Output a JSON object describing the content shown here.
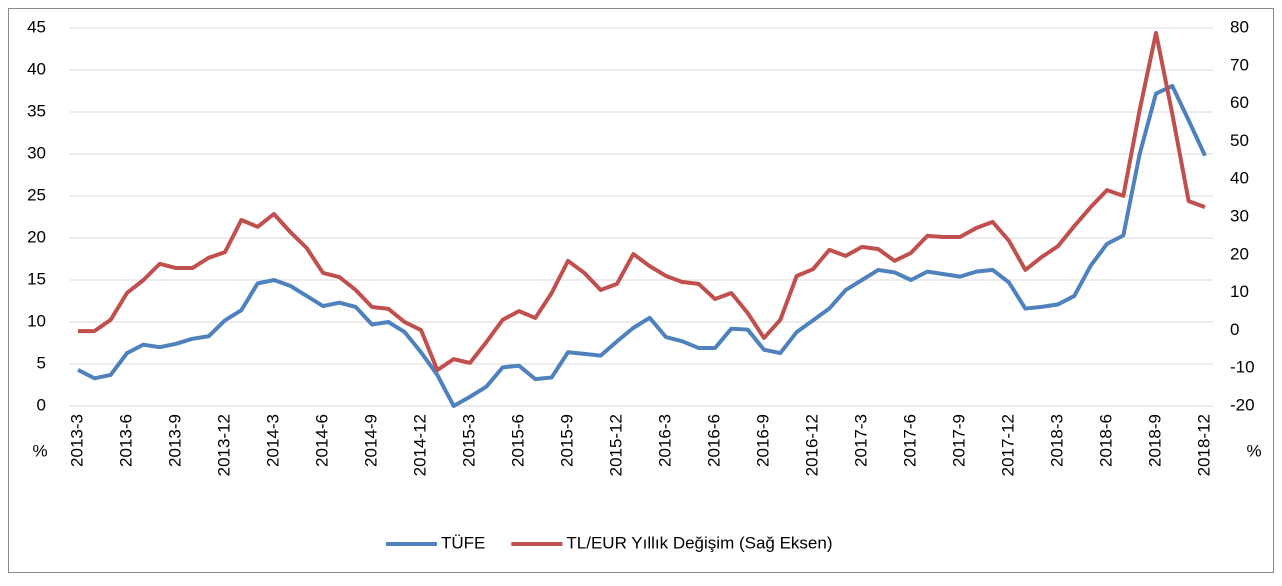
{
  "chart_data": {
    "type": "line",
    "y_label": "%",
    "y2_label": "%",
    "categories": [
      "2013-3",
      null,
      null,
      "2013-6",
      null,
      null,
      "2013-9",
      null,
      null,
      "2013-12",
      null,
      null,
      "2014-3",
      null,
      null,
      "2014-6",
      null,
      null,
      "2014-9",
      null,
      null,
      "2014-12",
      null,
      null,
      "2015-3",
      null,
      null,
      "2015-6",
      null,
      null,
      "2015-9",
      null,
      null,
      "2015-12",
      null,
      null,
      "2016-3",
      null,
      null,
      "2016-6",
      null,
      null,
      "2016-9",
      null,
      null,
      "2016-12",
      null,
      null,
      "2017-3",
      null,
      null,
      "2017-6",
      null,
      null,
      "2017-9",
      null,
      null,
      "2017-12",
      null,
      null,
      "2018-3",
      null,
      null,
      "2018-6",
      null,
      null,
      "2018-9",
      null,
      null,
      "2018-12"
    ],
    "series": [
      {
        "name": "TÜFE",
        "color": "#4f81bd",
        "values": [
          4.3,
          3.3,
          3.7,
          6.3,
          7.3,
          7.0,
          7.4,
          8.0,
          8.3,
          10.2,
          11.4,
          14.6,
          15.0,
          14.3,
          13.1,
          11.9,
          12.3,
          11.8,
          9.7,
          10.0,
          8.8,
          6.4,
          3.7,
          0,
          1.1,
          2.3,
          4.6,
          4.8,
          3.2,
          3.4,
          6.4,
          6.2,
          6.0,
          7.7,
          9.3,
          10.5,
          8.2,
          7.7,
          6.9,
          6.9,
          9.2,
          9.1,
          6.7,
          6.3,
          8.8,
          10.2,
          11.6,
          13.8,
          15.0,
          16.2,
          15.9,
          15.0,
          16.0,
          15.7,
          15.4,
          16.0,
          16.2,
          14.7,
          11.6,
          11.8,
          12.1,
          13.1,
          16.7,
          19.3,
          20.3,
          30.0,
          37.2,
          38.1,
          34.0,
          29.8
        ]
      },
      {
        "name": "TL/EUR Yıllık Değişim (Sağ Eksen)",
        "color": "#c0504d",
        "axis": "y2",
        "values": [
          -0.2,
          -0.2,
          2.8,
          9.9,
          13.3,
          17.6,
          16.5,
          16.5,
          19.2,
          20.7,
          29.2,
          27.4,
          30.8,
          26.0,
          21.8,
          15.2,
          14.1,
          10.7,
          6.2,
          5.7,
          2.2,
          0.1,
          -10.5,
          -7.6,
          -8.6,
          -3.1,
          2.8,
          5.1,
          3.3,
          9.9,
          18.4,
          15.2,
          10.7,
          12.3,
          20.2,
          17.0,
          14.4,
          12.8,
          12.3,
          8.3,
          9.9,
          4.6,
          -2.0,
          2.8,
          14.4,
          16.2,
          21.3,
          19.7,
          22.1,
          21.5,
          18.4,
          20.5,
          25.0,
          24.7,
          24.7,
          27.1,
          28.7,
          23.7,
          16.0,
          19.4,
          22.3,
          27.6,
          32.6,
          37.1,
          35.6,
          58.3,
          78.7,
          57.2,
          34.2,
          32.6
        ]
      }
    ],
    "ylim": [
      0,
      45
    ],
    "yticks": [
      0,
      5,
      10,
      15,
      20,
      25,
      30,
      35,
      40,
      45
    ],
    "y2lim": [
      -20,
      80
    ],
    "y2ticks": [
      -20,
      -10,
      0,
      10,
      20,
      30,
      40,
      50,
      60,
      70,
      80
    ],
    "grid": true,
    "legend": "bottom"
  }
}
